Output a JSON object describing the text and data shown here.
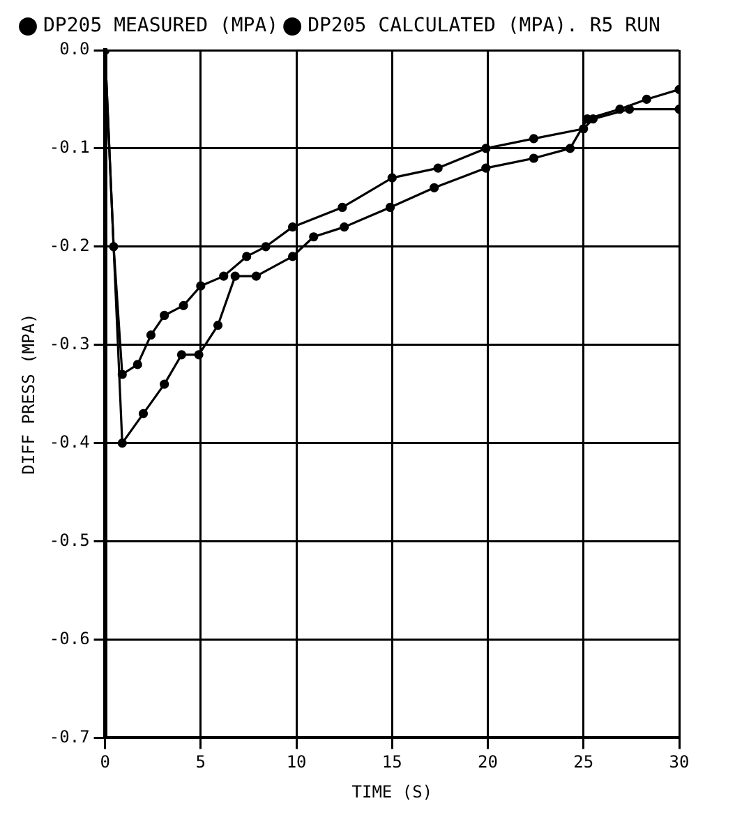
{
  "chart_data": {
    "type": "line",
    "xlabel": "TIME (S)",
    "ylabel": "DIFF PRESS (MPA)",
    "xlim": [
      0,
      30
    ],
    "xticks": [
      0,
      5,
      10,
      15,
      20,
      25,
      30
    ],
    "ylim": [
      -0.7,
      0
    ],
    "yticks": [
      {
        "value": 0,
        "label": "0.0"
      },
      -0.1,
      -0.2,
      -0.3,
      -0.4,
      -0.5,
      -0.6,
      -0.7
    ],
    "grid": true,
    "legend": "top left",
    "marker": "circle",
    "line_style": "solid",
    "series": [
      {
        "name": "DP205 MEASURED (MPA)",
        "color": "#000000",
        "x": [
          0,
          0.45,
          0.9,
          1.7,
          2.4,
          3.1,
          4.1,
          5.0,
          6.2,
          7.4,
          8.4,
          9.8,
          12.4,
          15.0,
          17.4,
          19.9,
          22.4,
          25.0,
          25.5,
          27.4,
          30.0
        ],
        "values": [
          0,
          -0.2,
          -0.33,
          -0.32,
          -0.29,
          -0.27,
          -0.26,
          -0.24,
          -0.23,
          -0.21,
          -0.2,
          -0.18,
          -0.16,
          -0.13,
          -0.12,
          -0.1,
          -0.09,
          -0.08,
          -0.07,
          -0.06,
          -0.06
        ]
      },
      {
        "name": "DP205 CALCULATED (MPA). R5 RUN",
        "color": "#000000",
        "x": [
          0,
          0.9,
          2.0,
          3.1,
          4.0,
          4.9,
          5.9,
          6.8,
          7.9,
          9.8,
          10.9,
          12.5,
          14.9,
          17.2,
          19.9,
          22.4,
          24.3,
          25.2,
          26.9,
          28.3,
          30.0
        ],
        "values": [
          0,
          -0.4,
          -0.37,
          -0.34,
          -0.31,
          -0.31,
          -0.28,
          -0.23,
          -0.23,
          -0.21,
          -0.19,
          -0.18,
          -0.16,
          -0.14,
          -0.12,
          -0.11,
          -0.1,
          -0.07,
          -0.06,
          -0.05,
          -0.04
        ]
      }
    ]
  }
}
